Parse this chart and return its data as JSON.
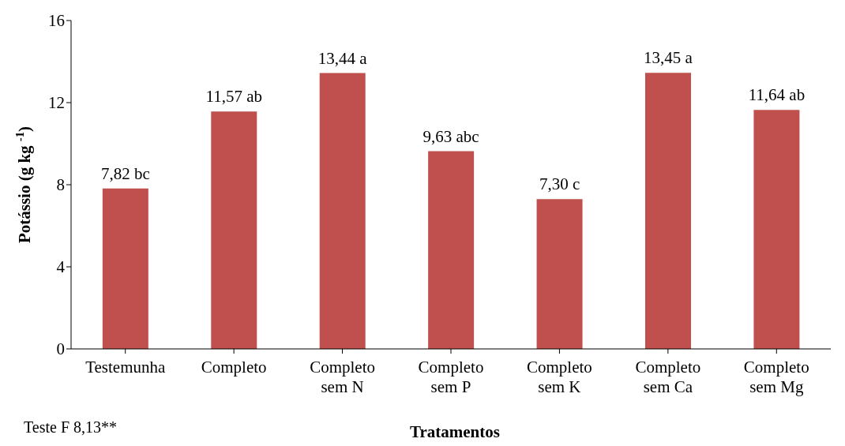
{
  "chart_data": {
    "type": "bar",
    "xlabel": "Tratamentos",
    "ylabel": "Potássio (g kg $^{-1}$)",
    "categories": [
      "Testemunha",
      "Completo",
      "Completo sem N",
      "Completo sem P",
      "Completo sem K",
      "Completo sem Ca",
      "Completo sem Mg"
    ],
    "values": [
      7.82,
      11.57,
      13.44,
      9.63,
      7.3,
      13.45,
      11.64
    ],
    "value_labels": [
      "7,82 bc",
      "11,57 ab",
      "13,44 a",
      "9,63 abc",
      "7,30 c",
      "13,45 a",
      "11,64 ab"
    ],
    "color": "#c0504d",
    "ylim": [
      0,
      16
    ],
    "yticks": [
      0,
      4,
      8,
      12,
      16
    ],
    "grid": false,
    "annotations": [
      "Teste F 8,13**"
    ]
  }
}
